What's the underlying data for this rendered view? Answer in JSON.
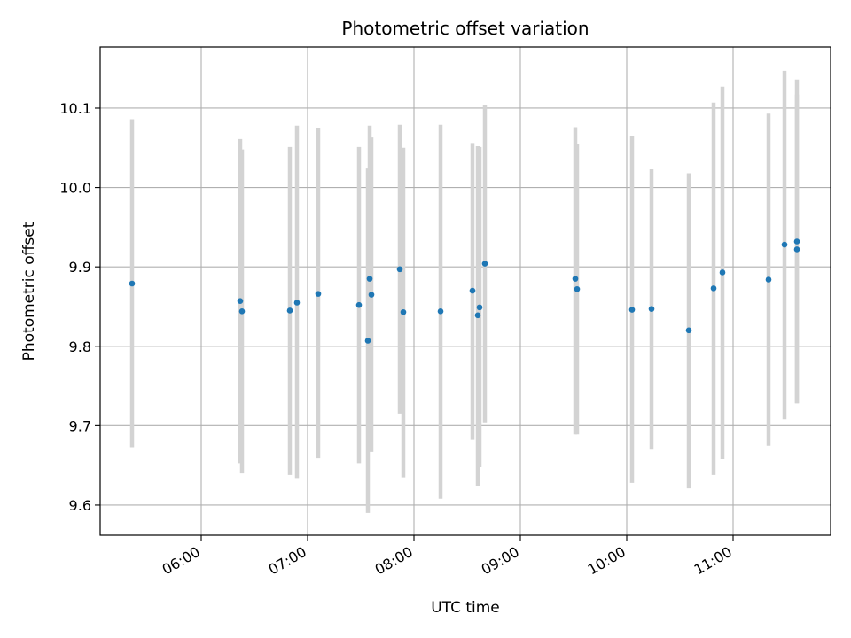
{
  "chart_data": {
    "type": "scatter",
    "title": "Photometric offset variation",
    "xlabel": "UTC time",
    "ylabel": "Photometric offset",
    "x_ticks": [
      "06:00",
      "07:00",
      "08:00",
      "09:00",
      "10:00",
      "11:00"
    ],
    "y_ticks": [
      "9.6",
      "9.7",
      "9.8",
      "9.9",
      "10.0",
      "10.1"
    ],
    "xlim": [
      "05:03",
      "11:55"
    ],
    "ylim": [
      9.562,
      10.177
    ],
    "grid": true,
    "colors": {
      "point": "#1f77b4",
      "errorbar": "#d3d3d3",
      "grid": "#b0b0b0"
    },
    "series": [
      {
        "points": [
          {
            "x": "05:21",
            "y": 9.879,
            "y_low": 9.672,
            "y_high": 10.086
          },
          {
            "x": "06:22",
            "y": 9.857,
            "y_low": 9.652,
            "y_high": 10.061
          },
          {
            "x": "06:23",
            "y": 9.844,
            "y_low": 9.64,
            "y_high": 10.048
          },
          {
            "x": "06:50",
            "y": 9.845,
            "y_low": 9.638,
            "y_high": 10.051
          },
          {
            "x": "06:54",
            "y": 9.855,
            "y_low": 9.633,
            "y_high": 10.078
          },
          {
            "x": "07:06",
            "y": 9.866,
            "y_low": 9.659,
            "y_high": 10.075
          },
          {
            "x": "07:29",
            "y": 9.852,
            "y_low": 9.652,
            "y_high": 10.051
          },
          {
            "x": "07:34",
            "y": 9.807,
            "y_low": 9.59,
            "y_high": 10.024
          },
          {
            "x": "07:35",
            "y": 9.885,
            "y_low": 9.69,
            "y_high": 10.078
          },
          {
            "x": "07:36",
            "y": 9.865,
            "y_low": 9.667,
            "y_high": 10.063
          },
          {
            "x": "07:52",
            "y": 9.897,
            "y_low": 9.715,
            "y_high": 10.079
          },
          {
            "x": "07:54",
            "y": 9.843,
            "y_low": 9.635,
            "y_high": 10.05
          },
          {
            "x": "08:15",
            "y": 9.844,
            "y_low": 9.608,
            "y_high": 10.079
          },
          {
            "x": "08:33",
            "y": 9.87,
            "y_low": 9.683,
            "y_high": 10.056
          },
          {
            "x": "08:36",
            "y": 9.839,
            "y_low": 9.624,
            "y_high": 10.052
          },
          {
            "x": "08:37",
            "y": 9.849,
            "y_low": 9.648,
            "y_high": 10.051
          },
          {
            "x": "08:40",
            "y": 9.904,
            "y_low": 9.704,
            "y_high": 10.104
          },
          {
            "x": "09:31",
            "y": 9.885,
            "y_low": 9.689,
            "y_high": 10.076
          },
          {
            "x": "09:32",
            "y": 9.872,
            "y_low": 9.689,
            "y_high": 10.055
          },
          {
            "x": "10:03",
            "y": 9.846,
            "y_low": 9.628,
            "y_high": 10.065
          },
          {
            "x": "10:14",
            "y": 9.847,
            "y_low": 9.67,
            "y_high": 10.023
          },
          {
            "x": "10:35",
            "y": 9.82,
            "y_low": 9.621,
            "y_high": 10.018
          },
          {
            "x": "10:49",
            "y": 9.873,
            "y_low": 9.638,
            "y_high": 10.107
          },
          {
            "x": "10:54",
            "y": 9.893,
            "y_low": 9.658,
            "y_high": 10.127
          },
          {
            "x": "11:20",
            "y": 9.884,
            "y_low": 9.675,
            "y_high": 10.093
          },
          {
            "x": "11:29",
            "y": 9.928,
            "y_low": 9.708,
            "y_high": 10.147
          },
          {
            "x": "11:36",
            "y": 9.932,
            "y_low": 9.728,
            "y_high": 10.136
          },
          {
            "x": "11:36",
            "y": 9.922,
            "y_low": 9.728,
            "y_high": 10.117
          }
        ]
      }
    ]
  }
}
